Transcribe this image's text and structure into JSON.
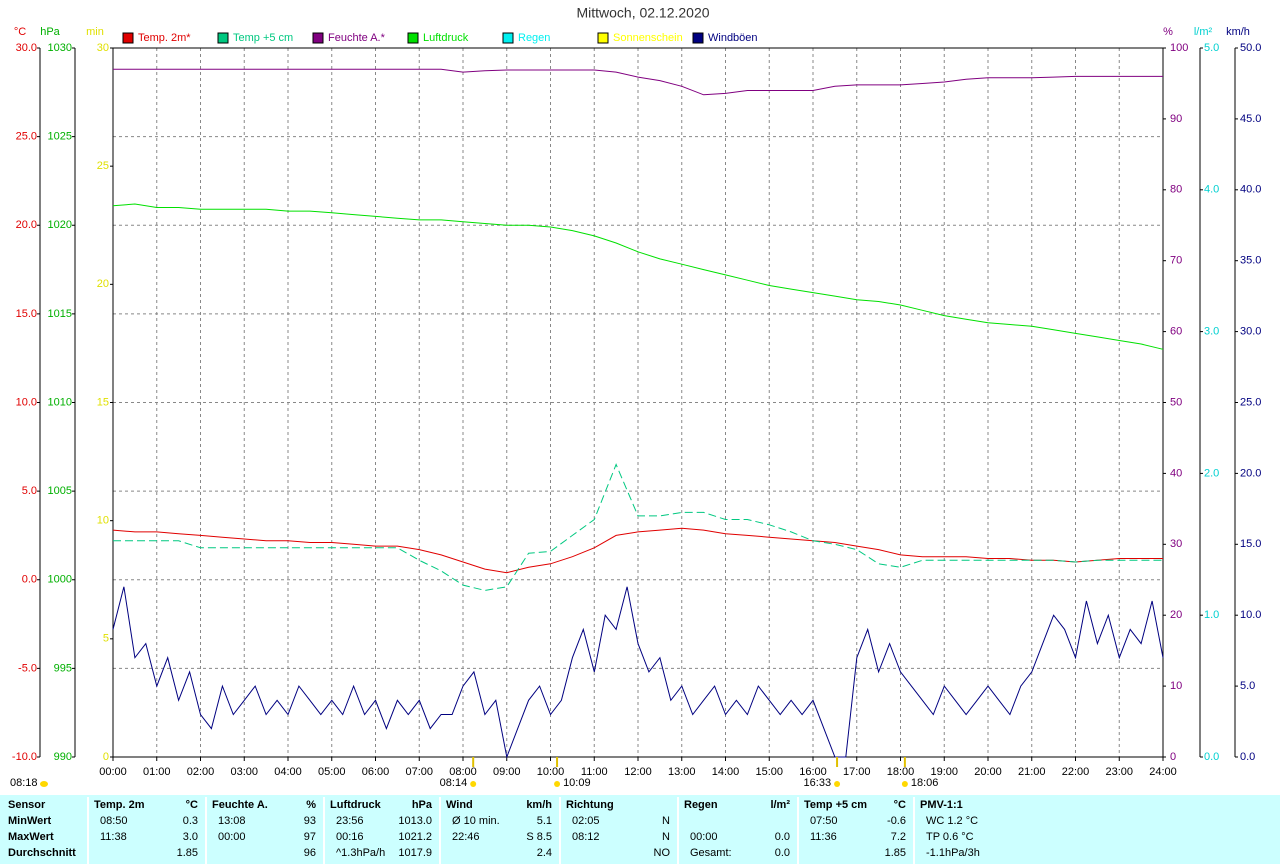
{
  "chart_data": {
    "type": "line",
    "title": "Mittwoch, 02.12.2020",
    "x": [
      0,
      0.5,
      1,
      1.5,
      2,
      2.5,
      3,
      3.5,
      4,
      4.5,
      5,
      5.5,
      6,
      6.5,
      7,
      7.5,
      8,
      8.5,
      9,
      9.5,
      10,
      10.5,
      11,
      11.5,
      12,
      12.5,
      13,
      13.5,
      14,
      14.5,
      15,
      15.5,
      16,
      16.5,
      17,
      17.5,
      18,
      18.5,
      19,
      19.5,
      20,
      20.5,
      21,
      21.5,
      22,
      22.5,
      23,
      23.5,
      24
    ],
    "xlim": [
      0,
      24
    ],
    "xticks": [
      {
        "value": 0,
        "label": "00:00"
      },
      {
        "value": 1,
        "label": "01:00"
      },
      {
        "value": 2,
        "label": "02:00"
      },
      {
        "value": 3,
        "label": "03:00"
      },
      {
        "value": 4,
        "label": "04:00"
      },
      {
        "value": 5,
        "label": "05:00"
      },
      {
        "value": 6,
        "label": "06:00"
      },
      {
        "value": 7,
        "label": "07:00"
      },
      {
        "value": 8,
        "label": "08:00"
      },
      {
        "value": 9,
        "label": "09:00"
      },
      {
        "value": 10,
        "label": "10:00"
      },
      {
        "value": 11,
        "label": "11:00"
      },
      {
        "value": 12,
        "label": "12:00"
      },
      {
        "value": 13,
        "label": "13:00"
      },
      {
        "value": 14,
        "label": "14:00"
      },
      {
        "value": 15,
        "label": "15:00"
      },
      {
        "value": 16,
        "label": "16:00"
      },
      {
        "value": 17,
        "label": "17:00"
      },
      {
        "value": 18,
        "label": "18:00"
      },
      {
        "value": 19,
        "label": "19:00"
      },
      {
        "value": 20,
        "label": "20:00"
      },
      {
        "value": 21,
        "label": "21:00"
      },
      {
        "value": 22,
        "label": "22:00"
      },
      {
        "value": 23,
        "label": "23:00"
      },
      {
        "value": 24,
        "label": "24:00"
      }
    ],
    "grid": true,
    "axes": [
      {
        "unit": "°C",
        "color": "#e00000",
        "lim": [
          -10,
          30
        ],
        "ticks": [
          {
            "value": -10,
            "label": "-10.0"
          },
          {
            "value": -5,
            "label": "-5.0"
          },
          {
            "value": 0,
            "label": "0.0"
          },
          {
            "value": 5,
            "label": "5.0"
          },
          {
            "value": 10,
            "label": "10.0"
          },
          {
            "value": 15,
            "label": "15.0"
          },
          {
            "value": 20,
            "label": "20.0"
          },
          {
            "value": 25,
            "label": "25.0"
          },
          {
            "value": 30,
            "label": "30.0"
          }
        ]
      },
      {
        "unit": "hPa",
        "color": "#00b000",
        "lim": [
          990,
          1030
        ],
        "ticks": [
          990,
          995,
          1000,
          1005,
          1010,
          1015,
          1020,
          1025,
          1030
        ]
      },
      {
        "unit": "min",
        "color": "#e0e000",
        "lim": [
          0,
          30
        ],
        "ticks": [
          0,
          5,
          10,
          15,
          20,
          25,
          30
        ]
      },
      {
        "unit": "%",
        "color": "#800080",
        "lim": [
          0,
          100
        ],
        "ticks": [
          0,
          10,
          20,
          30,
          40,
          50,
          60,
          70,
          80,
          90,
          100
        ]
      },
      {
        "unit": "l/m²",
        "color": "#00d0d0",
        "lim": [
          0,
          5
        ],
        "ticks": [
          {
            "value": 0,
            "label": "0.0"
          },
          {
            "value": 1,
            "label": "1.0"
          },
          {
            "value": 2,
            "label": "2.0"
          },
          {
            "value": 3,
            "label": "3.0"
          },
          {
            "value": 4,
            "label": "4.0"
          },
          {
            "value": 5,
            "label": "5.0"
          }
        ]
      },
      {
        "unit": "km/h",
        "color": "#000080",
        "lim": [
          0,
          50
        ],
        "ticks": [
          {
            "value": 0,
            "label": "0.0"
          },
          {
            "value": 5,
            "label": "5.0"
          },
          {
            "value": 10,
            "label": "10.0"
          },
          {
            "value": 15,
            "label": "15.0"
          },
          {
            "value": 20,
            "label": "20.0"
          },
          {
            "value": 25,
            "label": "25.0"
          },
          {
            "value": 30,
            "label": "30.0"
          },
          {
            "value": 35,
            "label": "35.0"
          },
          {
            "value": 40,
            "label": "40.0"
          },
          {
            "value": 45,
            "label": "45.0"
          },
          {
            "value": 50,
            "label": "50.0"
          }
        ]
      }
    ],
    "series": [
      {
        "name": "Temp. 2m*",
        "color": "#e00000",
        "axis": 0,
        "values": [
          2.8,
          2.7,
          2.7,
          2.6,
          2.5,
          2.4,
          2.3,
          2.2,
          2.2,
          2.1,
          2.1,
          2.0,
          1.9,
          1.9,
          1.7,
          1.4,
          1.0,
          0.6,
          0.4,
          0.7,
          0.9,
          1.3,
          1.8,
          2.5,
          2.7,
          2.8,
          2.9,
          2.8,
          2.6,
          2.5,
          2.4,
          2.3,
          2.2,
          2.1,
          1.9,
          1.7,
          1.4,
          1.3,
          1.3,
          1.3,
          1.2,
          1.2,
          1.1,
          1.1,
          1.0,
          1.1,
          1.2,
          1.2,
          1.2
        ]
      },
      {
        "name": "Temp +5 cm",
        "color": "#00c880",
        "axis": 0,
        "dashed": true,
        "values": [
          2.2,
          2.2,
          2.2,
          2.2,
          1.8,
          1.8,
          1.8,
          1.8,
          1.8,
          1.8,
          1.8,
          1.8,
          1.8,
          1.8,
          1.1,
          0.5,
          -0.3,
          -0.6,
          -0.4,
          1.5,
          1.6,
          2.5,
          3.4,
          6.5,
          3.6,
          3.6,
          3.8,
          3.8,
          3.4,
          3.4,
          3.1,
          2.7,
          2.2,
          2.0,
          1.7,
          0.9,
          0.7,
          1.1,
          1.1,
          1.1,
          1.1,
          1.1,
          1.1,
          1.1,
          1.0,
          1.1,
          1.1,
          1.1,
          1.1
        ]
      },
      {
        "name": "Feuchte A.*",
        "color": "#800080",
        "axis": 3,
        "values": [
          97.0,
          97.0,
          97.0,
          97.0,
          97.0,
          97.0,
          97.0,
          97.0,
          97.0,
          97.0,
          97.0,
          97.0,
          97.0,
          97.0,
          97.0,
          97.0,
          96.6,
          96.8,
          96.9,
          96.9,
          96.9,
          96.9,
          96.9,
          96.6,
          95.9,
          95.4,
          94.6,
          93.4,
          93.6,
          94.0,
          94.0,
          94.0,
          94.0,
          94.6,
          94.8,
          94.8,
          94.8,
          95.0,
          95.2,
          95.6,
          95.8,
          95.8,
          95.8,
          95.9,
          96.0,
          96.0,
          96.0,
          96.0,
          96.0
        ]
      },
      {
        "name": "Luftdruck",
        "color": "#00e000",
        "axis": 1,
        "values": [
          1021.1,
          1021.2,
          1021.0,
          1021.0,
          1020.9,
          1020.9,
          1020.9,
          1020.9,
          1020.8,
          1020.8,
          1020.7,
          1020.6,
          1020.5,
          1020.4,
          1020.3,
          1020.3,
          1020.2,
          1020.1,
          1020.0,
          1020.0,
          1019.9,
          1019.7,
          1019.4,
          1019.0,
          1018.5,
          1018.1,
          1017.8,
          1017.5,
          1017.2,
          1016.9,
          1016.6,
          1016.4,
          1016.2,
          1016.0,
          1015.8,
          1015.7,
          1015.5,
          1015.2,
          1014.9,
          1014.7,
          1014.5,
          1014.4,
          1014.3,
          1014.1,
          1013.9,
          1013.7,
          1013.5,
          1013.3,
          1013.0
        ]
      },
      {
        "name": "Regen",
        "color": "#00f0f0",
        "axis": 4,
        "x": [],
        "values": []
      },
      {
        "name": "Sonnenschein",
        "color": "#ffff00",
        "axis": 2,
        "x": [],
        "values": []
      },
      {
        "name": "Windböen",
        "color": "#000080",
        "axis": 5,
        "x": [
          0,
          0.25,
          0.5,
          0.75,
          1,
          1.25,
          1.5,
          1.75,
          2,
          2.25,
          2.5,
          2.75,
          3,
          3.25,
          3.5,
          3.75,
          4,
          4.25,
          4.5,
          4.75,
          5,
          5.25,
          5.5,
          5.75,
          6,
          6.25,
          6.5,
          6.75,
          7,
          7.25,
          7.5,
          7.75,
          8,
          8.25,
          8.5,
          8.75,
          9,
          9.25,
          9.5,
          9.75,
          10,
          10.25,
          10.5,
          10.75,
          11,
          11.25,
          11.5,
          11.75,
          12,
          12.25,
          12.5,
          12.75,
          13,
          13.25,
          13.5,
          13.75,
          14,
          14.25,
          14.5,
          14.75,
          15,
          15.25,
          15.5,
          15.75,
          16,
          16.25,
          16.5,
          16.75,
          17,
          17.25,
          17.5,
          17.75,
          18,
          18.25,
          18.5,
          18.75,
          19,
          19.25,
          19.5,
          19.75,
          20,
          20.25,
          20.5,
          20.75,
          21,
          21.25,
          21.5,
          21.75,
          22,
          22.25,
          22.5,
          22.75,
          23,
          23.25,
          23.5,
          23.75,
          24
        ],
        "values": [
          9,
          12,
          7,
          8,
          5,
          7,
          4,
          6,
          3,
          2,
          5,
          3,
          4,
          5,
          3,
          4,
          3,
          5,
          4,
          3,
          4,
          3,
          5,
          3,
          4,
          2,
          4,
          3,
          4,
          2,
          3,
          3,
          5,
          6,
          3,
          4,
          0,
          2,
          4,
          5,
          3,
          4,
          7,
          9,
          6,
          10,
          9,
          12,
          8,
          6,
          7,
          4,
          5,
          3,
          4,
          5,
          3,
          4,
          3,
          5,
          4,
          3,
          4,
          3,
          4,
          2,
          0,
          0,
          7,
          9,
          6,
          8,
          6,
          5,
          4,
          3,
          5,
          4,
          3,
          4,
          5,
          4,
          3,
          5,
          6,
          8,
          10,
          9,
          7,
          11,
          8,
          10,
          7,
          9,
          8,
          11,
          7
        ]
      }
    ],
    "annotations": [
      {
        "label": "08:18"
      },
      {
        "label": "08:14",
        "x": 8.233
      },
      {
        "label": "10:09",
        "x": 10.15
      },
      {
        "label": "16:33",
        "x": 16.55
      },
      {
        "label": "18:06",
        "x": 18.1
      }
    ]
  },
  "table": {
    "header": "Sensor",
    "row_labels": [
      "MinWert",
      "MaxWert",
      "Durchschnitt"
    ],
    "columns": [
      {
        "title": "Temp. 2m",
        "unit": "°C",
        "cells": [
          {
            "left": "08:50",
            "right": "0.3"
          },
          {
            "left": "11:38",
            "right": "3.0"
          },
          {
            "right": "1.85"
          }
        ]
      },
      {
        "title": "Feuchte A.",
        "unit": "%",
        "cells": [
          {
            "left": "13:08",
            "right": "93"
          },
          {
            "left": "00:00",
            "right": "97"
          },
          {
            "right": "96"
          }
        ]
      },
      {
        "title": "Luftdruck",
        "unit": "hPa",
        "cells": [
          {
            "left": "23:56",
            "right": "1013.0"
          },
          {
            "left": "00:16",
            "right": "1021.2"
          },
          {
            "left": "^1.3hPa/h",
            "right": "1017.9"
          }
        ]
      },
      {
        "title": "Wind",
        "unit": "km/h",
        "cells": [
          {
            "left": "Ø 10 min.",
            "right": "5.1"
          },
          {
            "left": "22:46",
            "right": "S 8.5"
          },
          {
            "right": "2.4"
          }
        ]
      },
      {
        "title": "Richtung",
        "cells": [
          {
            "left": "02:05",
            "right": "N"
          },
          {
            "left": "08:12",
            "right": "N"
          },
          {
            "right": "NO"
          }
        ]
      },
      {
        "title": "Regen",
        "unit": "l/m²",
        "cells": [
          {},
          {
            "left": "00:00",
            "right": "0.0"
          },
          {
            "left": "Gesamt:",
            "right": "0.0"
          }
        ]
      },
      {
        "title": "Temp +5 cm",
        "unit": "°C",
        "cells": [
          {
            "left": "07:50",
            "right": "-0.6"
          },
          {
            "left": "11:36",
            "right": "7.2"
          },
          {
            "right": "1.85"
          }
        ]
      },
      {
        "title": "PMV-1:1",
        "cells": [
          {
            "left": "WC 1.2 °C"
          },
          {
            "left": "TP 0.6 °C"
          },
          {
            "left": "-1.1hPa/3h"
          }
        ]
      }
    ]
  }
}
